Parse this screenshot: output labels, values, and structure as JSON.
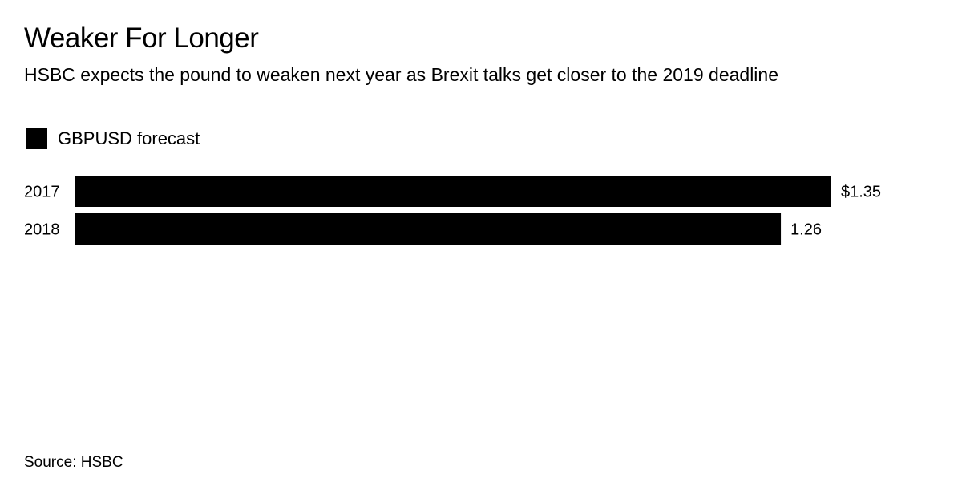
{
  "title": "Weaker For Longer",
  "subtitle": "HSBC expects the pound to weaken next year as Brexit talks get closer to the 2019 deadline",
  "source": "Source: HSBC",
  "chart_data": {
    "type": "bar",
    "orientation": "horizontal",
    "categories": [
      "2017",
      "2018"
    ],
    "series": [
      {
        "name": "GBPUSD forecast",
        "values": [
          1.35,
          1.26
        ],
        "color": "#000000"
      }
    ],
    "value_labels": [
      "$1.35",
      "1.26"
    ],
    "xlim": [
      0,
      1.35
    ],
    "grid": false,
    "legend": "top-left"
  }
}
